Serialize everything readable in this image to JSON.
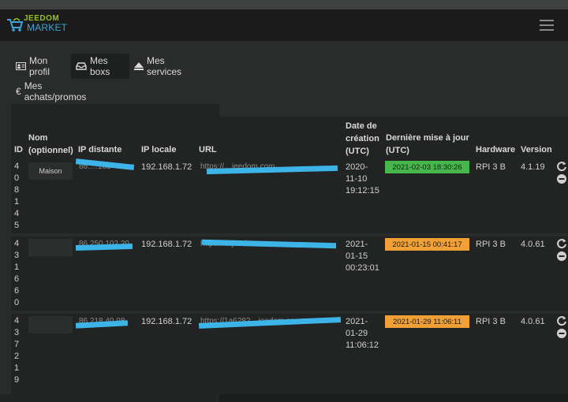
{
  "brand": {
    "top": "JEEDOM",
    "bottom": "MARKET"
  },
  "tabs": [
    {
      "label": "Mon profil",
      "icon": "id-card-icon"
    },
    {
      "label": "Mes boxs",
      "icon": "inbox-icon",
      "active": true
    },
    {
      "label": "Mes services",
      "icon": "eject-icon"
    },
    {
      "label": "Mes achats/promos",
      "icon": "euro-icon"
    }
  ],
  "table": {
    "headers": {
      "id": "ID",
      "name_line1": "Nom",
      "name_line2": "(optionnel)",
      "ip_remote": "IP distante",
      "ip_local": "IP locale",
      "url": "URL",
      "created_line1": "Date de",
      "created_line2": "création",
      "created_line3": "(UTC)",
      "updated_line1": "Dernière mise à jour",
      "updated_line2": "(UTC)",
      "hardware": "Hardware",
      "version": "Version"
    },
    "rows": [
      {
        "id": "408145",
        "name": "Maison",
        "ip_remote": "86.…183",
        "ip_local": "192.168.1.72",
        "url": "https://…jeedom.com",
        "created": [
          "2020-",
          "11-10",
          "19:12:15"
        ],
        "updated": "2021-02-03 18:30:26",
        "status_color": "#44b84a",
        "hardware": "RPI 3 B",
        "version": "4.1.19"
      },
      {
        "id": "431660",
        "name": "",
        "ip_remote": "86.250.102.20",
        "ip_local": "192.168.1.72",
        "url": "https://…jeedom.com",
        "created": [
          "2021-",
          "01-15",
          "00:23:01"
        ],
        "updated": "2021-01-15 00:41:17",
        "status_color": "#f0a035",
        "hardware": "RPI 3 B",
        "version": "4.0.61"
      },
      {
        "id": "437219",
        "name": "",
        "ip_remote": "86.218.40.98",
        "ip_local": "192.168.1.72",
        "url": "https://1a6282…jeedom.com",
        "created": [
          "2021-",
          "01-29",
          "11:06:12"
        ],
        "updated": "2021-01-29 11:06:11",
        "status_color": "#f0a035",
        "hardware": "RPI 3 B",
        "version": "4.0.61"
      }
    ]
  }
}
